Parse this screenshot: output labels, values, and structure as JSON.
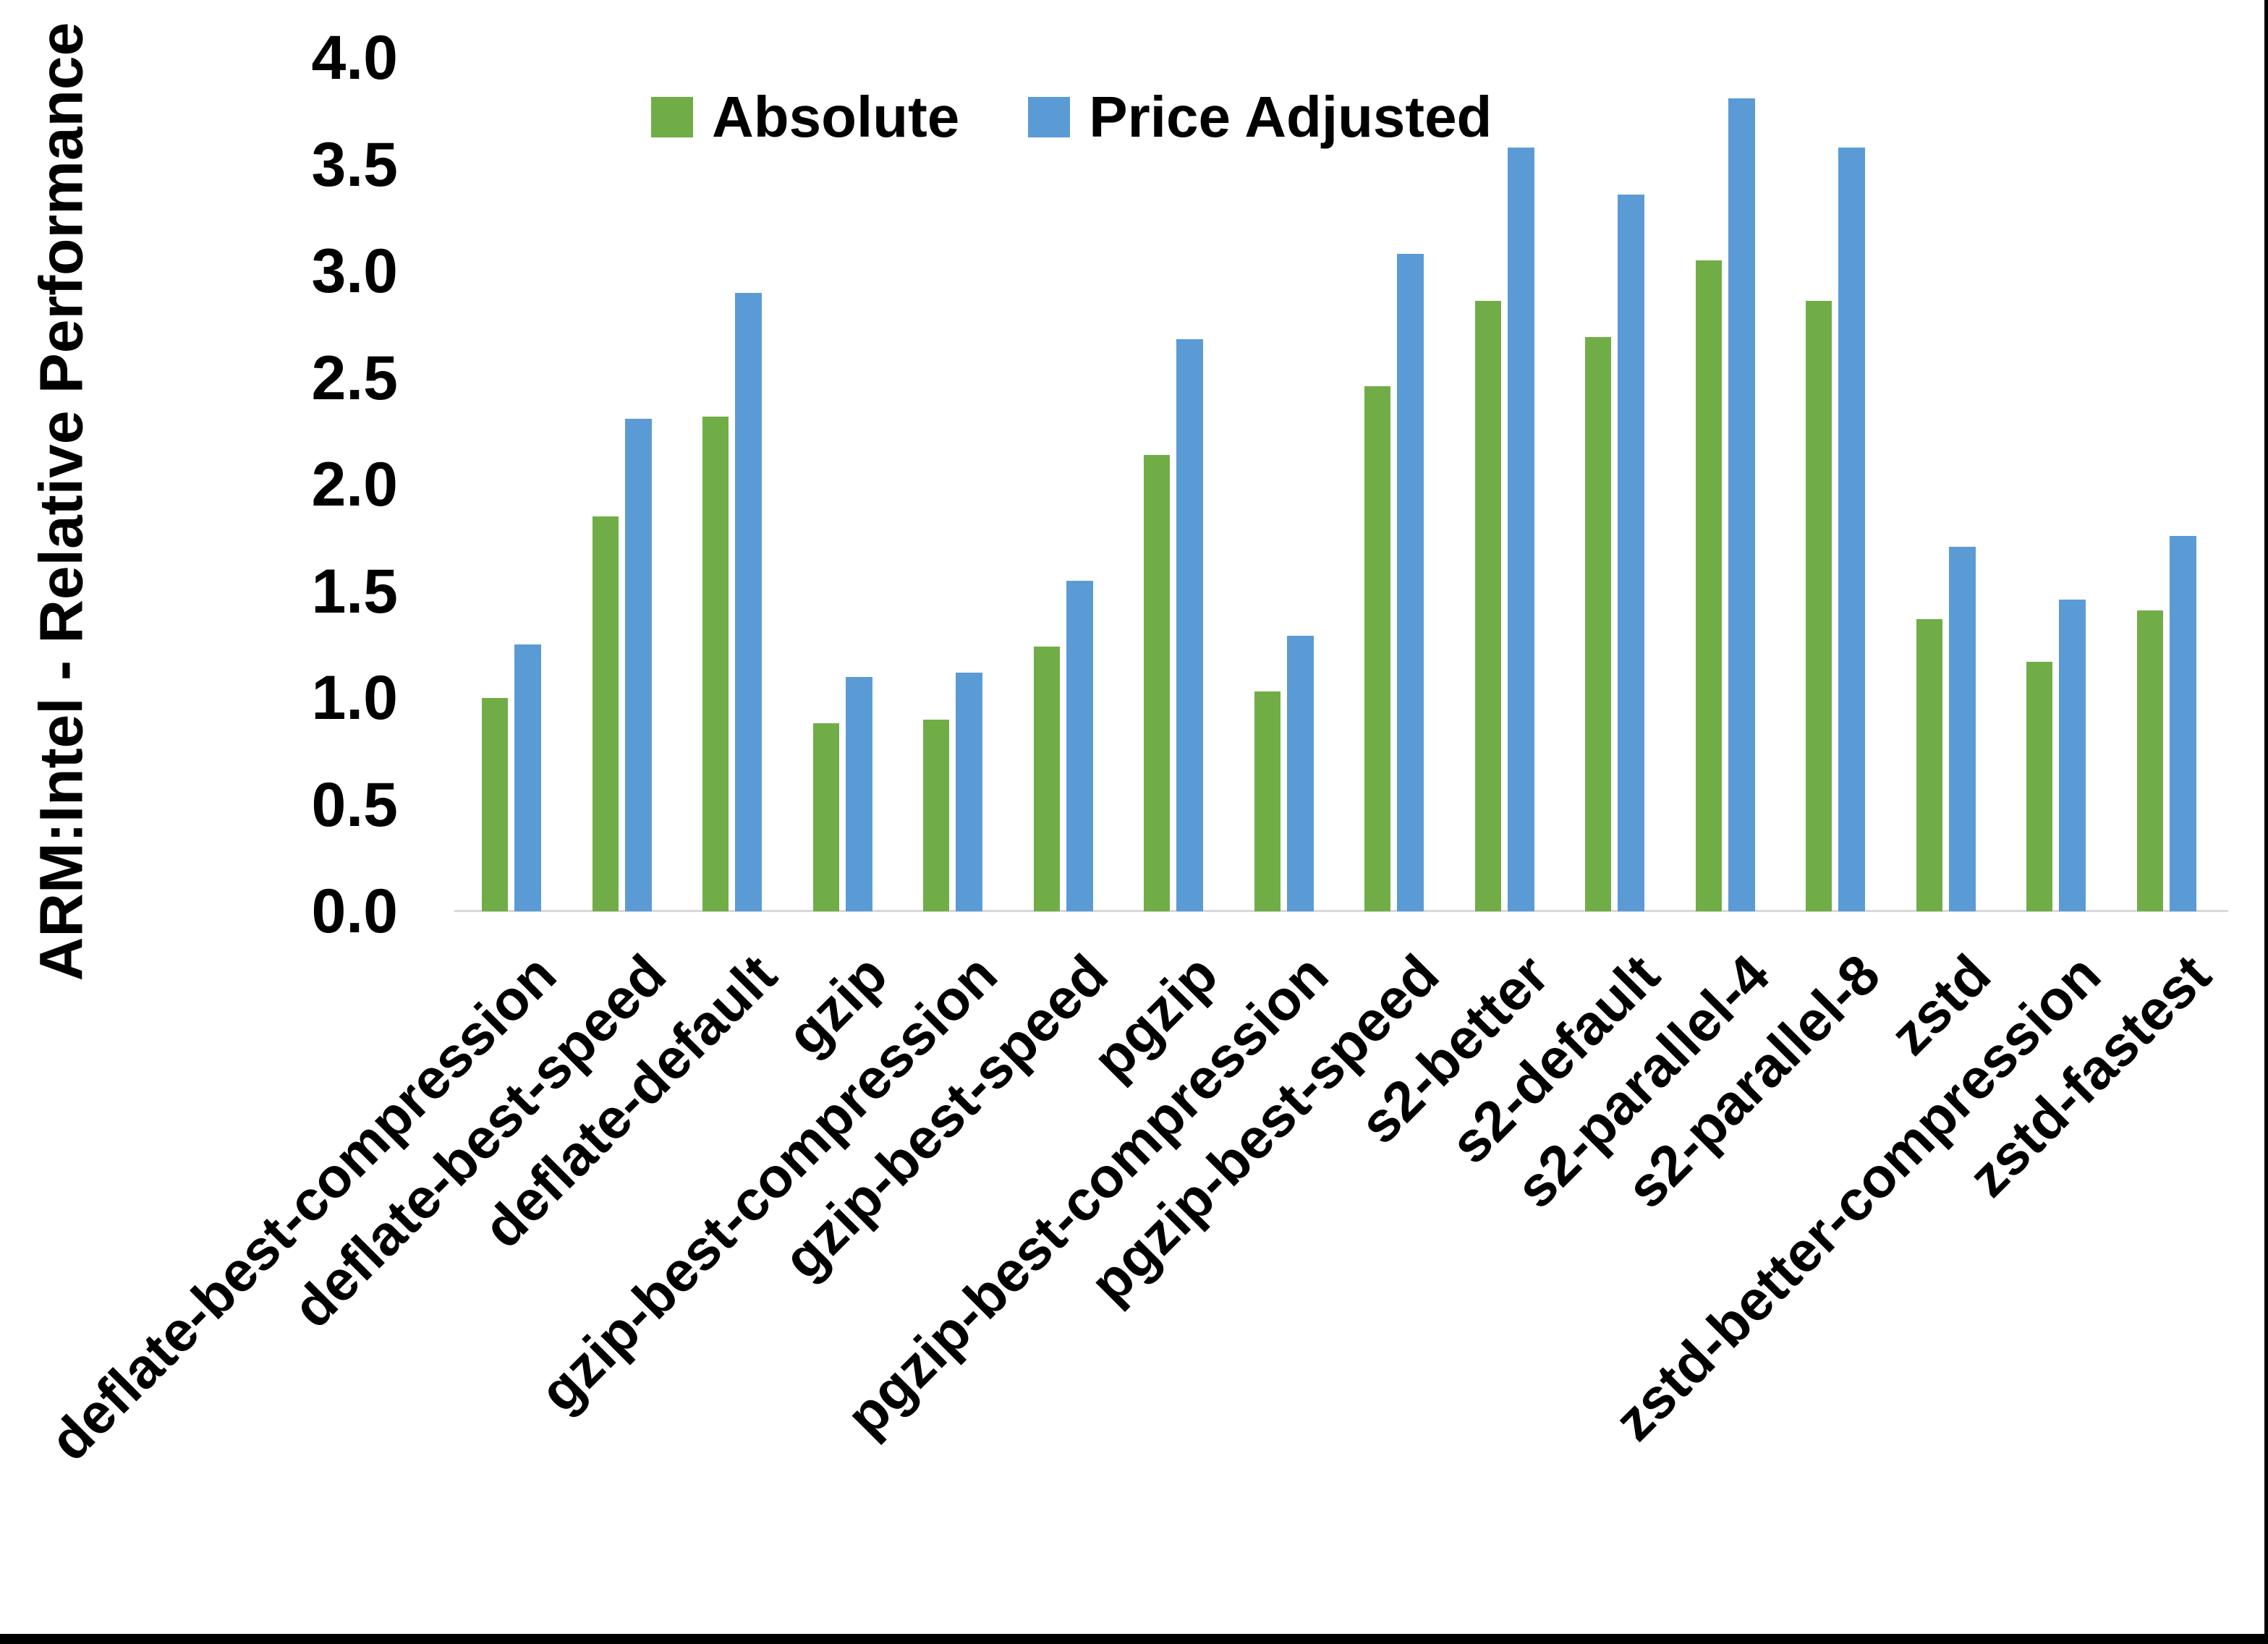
{
  "frame": {
    "bottom_bar_color": "#000000",
    "right_bar_color": "#000000"
  },
  "chart_data": {
    "type": "bar",
    "title": "",
    "xlabel": "",
    "ylabel": "ARM:Intel - Relative Performance",
    "ylim": [
      0.0,
      4.0
    ],
    "ytick_step": 0.5,
    "yticks": [
      "0.0",
      "0.5",
      "1.0",
      "1.5",
      "2.0",
      "2.5",
      "3.0",
      "3.5",
      "4.0"
    ],
    "grid": false,
    "legend_position": "top-center",
    "categories": [
      "deflate-best-compression",
      "deflate-best-speed",
      "deflate-default",
      "gzip",
      "gzip-best-compression",
      "gzip-best-speed",
      "pgzip",
      "pgzip-best-compression",
      "pgzip-best-speed",
      "s2-better",
      "s2-default",
      "s2-parallel-4",
      "s2-parallel-8",
      "zstd",
      "zstd-better-compression",
      "zstd-fastest"
    ],
    "series": [
      {
        "name": "Absolute",
        "color": "#70AD47",
        "values": [
          1.0,
          1.85,
          2.32,
          0.88,
          0.9,
          1.24,
          2.14,
          1.03,
          2.46,
          2.86,
          2.69,
          3.05,
          2.86,
          1.37,
          1.17,
          1.41
        ]
      },
      {
        "name": "Price Adjusted",
        "color": "#5B9BD5",
        "values": [
          1.25,
          2.31,
          2.9,
          1.1,
          1.12,
          1.55,
          2.68,
          1.29,
          3.08,
          3.58,
          3.36,
          3.81,
          3.58,
          1.71,
          1.46,
          1.76
        ]
      }
    ]
  }
}
